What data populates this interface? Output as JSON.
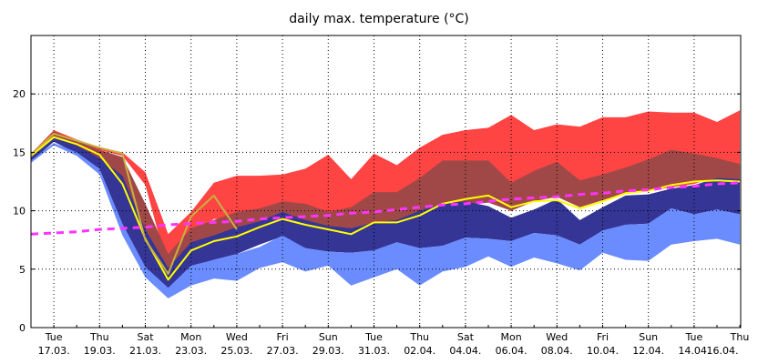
{
  "chart_data": {
    "type": "area",
    "title": "daily max. temperature (°C)",
    "xlabel": "",
    "ylabel": "",
    "ylim": [
      0,
      25
    ],
    "y_ticks": [
      0,
      5,
      10,
      15,
      20
    ],
    "x_ticks": [
      {
        "day": "Tue",
        "date": "17.03."
      },
      {
        "day": "Thu",
        "date": "19.03."
      },
      {
        "day": "Sat",
        "date": "21.03."
      },
      {
        "day": "Mon",
        "date": "23.03."
      },
      {
        "day": "Wed",
        "date": "25.03."
      },
      {
        "day": "Fri",
        "date": "27.03."
      },
      {
        "day": "Sun",
        "date": "29.03."
      },
      {
        "day": "Tue",
        "date": "31.03."
      },
      {
        "day": "Thu",
        "date": "02.04."
      },
      {
        "day": "Sat",
        "date": "04.04."
      },
      {
        "day": "Mon",
        "date": "06.04."
      },
      {
        "day": "Wed",
        "date": "08.04."
      },
      {
        "day": "Fri",
        "date": "10.04."
      },
      {
        "day": "Sun",
        "date": "12.04."
      },
      {
        "day": "Tue",
        "date": "14.04."
      },
      {
        "day": "Thu",
        "date": "16.04."
      }
    ],
    "grid": true,
    "x": [
      "16.03.",
      "17.03.",
      "18.03.",
      "19.03.",
      "20.03.",
      "21.03.",
      "22.03.",
      "23.03.",
      "24.03.",
      "25.03.",
      "26.03.",
      "27.03.",
      "28.03.",
      "29.03.",
      "30.03.",
      "31.03.",
      "01.04.",
      "02.04.",
      "03.04.",
      "04.04.",
      "05.04.",
      "06.04.",
      "07.04.",
      "08.04.",
      "09.04.",
      "10.04.",
      "11.04.",
      "12.04.",
      "13.04.",
      "14.04.",
      "15.04.",
      "16.04."
    ],
    "series": [
      {
        "color": "#ff4444",
        "values_low": [
          14.6,
          16.5,
          15.6,
          15.2,
          14.7,
          12.2,
          5.0,
          7.6,
          9.3,
          9.3,
          9.4,
          9.8,
          9.5,
          9.1,
          9.0,
          9.6,
          9.4,
          10.1,
          10.8,
          10.9,
          11.2,
          10.7,
          11.5,
          11.6,
          11.0,
          11.6,
          11.8,
          11.7,
          12.0,
          12.3,
          12.9,
          12.6
        ],
        "values_high": [
          14.9,
          16.9,
          16.1,
          15.4,
          15.0,
          13.3,
          8.0,
          9.9,
          12.4,
          13.0,
          13.0,
          13.1,
          13.6,
          14.8,
          12.7,
          14.9,
          13.9,
          15.4,
          16.5,
          16.9,
          17.1,
          18.2,
          16.9,
          17.4,
          17.2,
          18.0,
          18.0,
          18.5,
          18.4,
          18.4,
          17.6,
          18.6
        ]
      },
      {
        "color": "#a04848",
        "values_low": [
          14.5,
          16.2,
          15.3,
          14.4,
          12.5,
          7.4,
          4.1,
          6.6,
          7.5,
          7.9,
          8.6,
          9.4,
          8.7,
          8.3,
          8.1,
          8.6,
          8.6,
          9.0,
          10.0,
          10.5,
          10.7,
          10.0,
          10.8,
          11.2,
          10.3,
          10.9,
          11.5,
          11.8,
          12.1,
          12.4,
          12.6,
          12.3
        ],
        "values_high": [
          14.8,
          16.8,
          16.0,
          15.2,
          14.6,
          10.6,
          6.3,
          8.5,
          9.2,
          9.9,
          10.2,
          10.8,
          10.6,
          9.9,
          10.3,
          11.6,
          11.6,
          12.8,
          14.3,
          14.3,
          14.3,
          12.4,
          13.4,
          14.2,
          12.6,
          13.1,
          13.7,
          14.4,
          15.2,
          14.9,
          14.5,
          14.0
        ]
      },
      {
        "color": "#353596",
        "values_low": [
          14.2,
          15.9,
          14.9,
          13.3,
          8.0,
          4.8,
          3.2,
          5.2,
          5.8,
          6.3,
          7.1,
          7.8,
          6.8,
          6.5,
          6.4,
          6.6,
          7.3,
          6.8,
          7.0,
          7.7,
          7.6,
          7.4,
          8.1,
          7.9,
          7.1,
          8.3,
          8.8,
          8.9,
          10.2,
          9.7,
          10.1,
          9.7
        ],
        "values_high": [
          14.6,
          16.3,
          15.6,
          14.5,
          13.0,
          8.4,
          5.1,
          7.3,
          7.9,
          8.6,
          9.1,
          9.9,
          9.2,
          8.7,
          8.5,
          9.0,
          9.2,
          10.0,
          10.6,
          10.8,
          10.4,
          9.4,
          10.1,
          11.0,
          9.2,
          10.3,
          11.3,
          11.4,
          11.9,
          12.2,
          12.8,
          12.7
        ]
      },
      {
        "color": "#6a8cff",
        "values_low": [
          14.1,
          15.6,
          14.7,
          13.1,
          7.9,
          4.3,
          2.5,
          3.6,
          4.2,
          4.0,
          5.1,
          5.6,
          4.8,
          5.3,
          3.6,
          4.3,
          5.0,
          3.6,
          4.8,
          5.2,
          6.1,
          5.2,
          6.0,
          5.5,
          4.9,
          6.4,
          5.8,
          5.7,
          7.1,
          7.4,
          7.6,
          7.1
        ],
        "values_high": [
          14.3,
          15.8,
          15.0,
          13.6,
          8.9,
          5.2,
          3.4,
          5.3,
          5.8,
          6.3,
          6.9,
          7.9,
          6.8,
          6.5,
          6.4,
          6.6,
          7.3,
          6.8,
          7.0,
          7.7,
          7.6,
          7.4,
          8.1,
          7.9,
          7.1,
          8.3,
          8.8,
          8.9,
          10.2,
          9.7,
          10.1,
          9.7
        ]
      }
    ],
    "lines": [
      {
        "color": "#ffff00",
        "values": [
          14.7,
          16.3,
          15.7,
          14.8,
          12.3,
          7.6,
          4.1,
          6.6,
          7.4,
          7.8,
          8.6,
          9.3,
          8.8,
          8.4,
          8.0,
          9.0,
          9.0,
          9.6,
          10.6,
          11.0,
          11.3,
          10.3,
          10.8,
          10.9,
          10.2,
          10.8,
          11.5,
          11.7,
          12.2,
          12.5,
          12.6,
          12.5
        ]
      },
      {
        "color": "#c8b040",
        "values": [
          14.8,
          16.6,
          16.0,
          15.4,
          14.9,
          7.5,
          4.6,
          9.5,
          11.3,
          8.4
        ]
      },
      {
        "color": "#ff33ff",
        "dashed": true,
        "values": [
          8.0,
          8.1,
          8.2,
          8.4,
          8.5,
          8.6,
          8.8,
          8.9,
          9.0,
          9.1,
          9.3,
          9.4,
          9.5,
          9.6,
          9.8,
          9.9,
          10.1,
          10.3,
          10.5,
          10.6,
          10.8,
          11.0,
          11.1,
          11.2,
          11.4,
          11.5,
          11.7,
          11.8,
          12.0,
          12.1,
          12.3,
          12.4
        ]
      }
    ]
  }
}
